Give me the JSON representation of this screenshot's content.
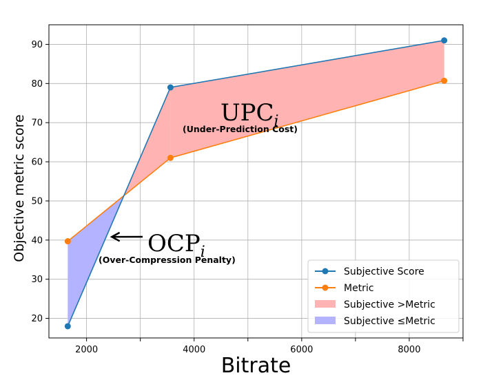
{
  "chart_data": {
    "type": "line",
    "xlabel": "Bitrate",
    "ylabel": "Objective metric score",
    "xlim": [
      1300,
      9000
    ],
    "ylim": [
      15,
      95
    ],
    "x_ticks": [
      2000,
      4000,
      6000,
      8000
    ],
    "x_tick_labels": [
      "2000",
      "4000",
      "6000",
      "8000"
    ],
    "y_ticks": [
      20,
      30,
      40,
      50,
      60,
      70,
      80,
      90
    ],
    "y_tick_labels": [
      "20",
      "30",
      "40",
      "50",
      "60",
      "70",
      "80",
      "90"
    ],
    "grid": true,
    "legend_position": "lower-right",
    "series": [
      {
        "name": "Subjective Score",
        "color": "#1f77b4",
        "x": [
          1650,
          3560,
          8650
        ],
        "y": [
          18,
          79,
          91
        ]
      },
      {
        "name": "Metric",
        "color": "#ff7f0e",
        "x": [
          1650,
          3560,
          8650
        ],
        "y": [
          39.7,
          61,
          80.7
        ]
      }
    ],
    "fills": [
      {
        "name": "Subjective >Metric",
        "color": "#ffb3b3"
      },
      {
        "name": "Subjective ≤Metric",
        "color": "#b3b3ff"
      }
    ],
    "annotations": [
      {
        "text": "UPC",
        "subscript": "i",
        "caption": "(Under-Prediction Cost)"
      },
      {
        "text": "OCP",
        "subscript": "i",
        "caption": "(Over-Compression Penalty)",
        "arrow_to": [
          1700,
          41
        ]
      }
    ]
  }
}
